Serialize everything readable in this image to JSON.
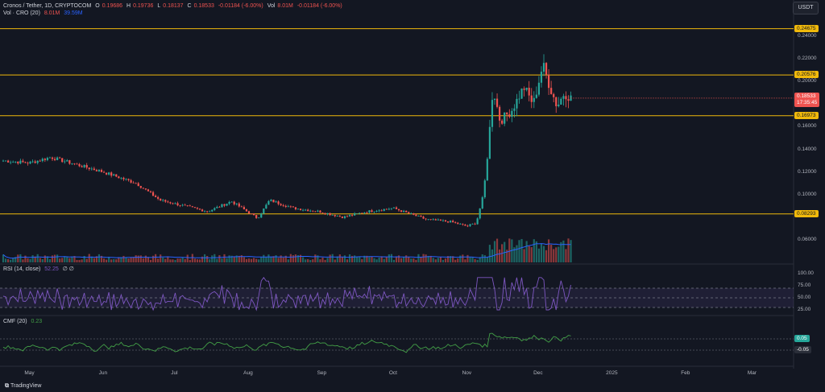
{
  "header": {
    "symbol": "Cronos / Tether, 1D, CRYPTOCOM",
    "open_label": "O",
    "open": "0.19686",
    "high_label": "H",
    "high": "0.19736",
    "low_label": "L",
    "low": "0.18137",
    "close_label": "C",
    "close": "0.18533",
    "change": "-0.01184 (-6.00%)",
    "vol_label": "Vol",
    "vol": "8.01M",
    "vol_change": "-0.01184 (-6.00%)",
    "vol_indicator": "Vol · CRO (20)",
    "vol_a": "8.01M",
    "vol_b": "39.59M"
  },
  "currency_button": "USDT",
  "rsi_label": "RSI (14, close)",
  "rsi_value": "52.25",
  "rsi_extra": "∅ ∅",
  "cmf_label": "CMF (20)",
  "cmf_value": "0.23",
  "footer": {
    "brand": "TradingView"
  },
  "price_tag": {
    "value": "0.18533",
    "countdown": "17:35:45"
  },
  "colors": {
    "bg": "#131722",
    "up": "#26a69a",
    "down": "#ef5350",
    "level": "#f0b90b",
    "rsi": "#7e57c2",
    "cmf": "#43a047",
    "vol_ma": "#2962ff"
  },
  "chart_data": [
    {
      "type": "candlestick",
      "title": "Cronos / Tether, 1D, CRYPTOCOM",
      "x_ticks": [
        "May",
        "Jun",
        "Jul",
        "Aug",
        "Sep",
        "Oct",
        "Nov",
        "Dec",
        "2025",
        "Feb",
        "Mar"
      ],
      "y_ticks": [
        "0.24000",
        "0.22000",
        "0.20000",
        "0.18000",
        "0.16000",
        "0.14000",
        "0.12000",
        "0.10000",
        "0.06000"
      ],
      "ylim": [
        0.04,
        0.255
      ],
      "levels": [
        "0.24675",
        "0.20576",
        "0.16973",
        "0.08293"
      ],
      "last_price": 0.18533,
      "path": [
        [
          "2024-04-20",
          0.13
        ],
        [
          "2024-05-01",
          0.128
        ],
        [
          "2024-05-10",
          0.133
        ],
        [
          "2024-05-20",
          0.127
        ],
        [
          "2024-06-01",
          0.12
        ],
        [
          "2024-06-15",
          0.11
        ],
        [
          "2024-06-25",
          0.095
        ],
        [
          "2024-07-05",
          0.09
        ],
        [
          "2024-07-15",
          0.085
        ],
        [
          "2024-07-25",
          0.094
        ],
        [
          "2024-08-05",
          0.079
        ],
        [
          "2024-08-10",
          0.095
        ],
        [
          "2024-08-20",
          0.088
        ],
        [
          "2024-08-31",
          0.085
        ],
        [
          "2024-09-10",
          0.08
        ],
        [
          "2024-09-20",
          0.085
        ],
        [
          "2024-10-01",
          0.088
        ],
        [
          "2024-10-15",
          0.078
        ],
        [
          "2024-10-25",
          0.076
        ],
        [
          "2024-11-01",
          0.072
        ],
        [
          "2024-11-05",
          0.075
        ],
        [
          "2024-11-08",
          0.1
        ],
        [
          "2024-11-10",
          0.14
        ],
        [
          "2024-11-12",
          0.195
        ],
        [
          "2024-11-15",
          0.165
        ],
        [
          "2024-11-20",
          0.175
        ],
        [
          "2024-11-25",
          0.195
        ],
        [
          "2024-11-29",
          0.18
        ],
        [
          "2024-12-03",
          0.215
        ],
        [
          "2024-12-06",
          0.195
        ],
        [
          "2024-12-09",
          0.178
        ],
        [
          "2024-12-12",
          0.19
        ],
        [
          "2024-12-15",
          0.185
        ]
      ],
      "volume_ylim": [
        0,
        1.0
      ],
      "rsi": {
        "ylim": [
          20,
          100
        ],
        "ticks": [
          "100.00",
          "75.00",
          "50.00",
          "25.00"
        ],
        "upper": 70,
        "mid": 50,
        "lower": 30
      },
      "cmf": {
        "ticks": [
          "0.05",
          "-0.05"
        ]
      }
    }
  ]
}
